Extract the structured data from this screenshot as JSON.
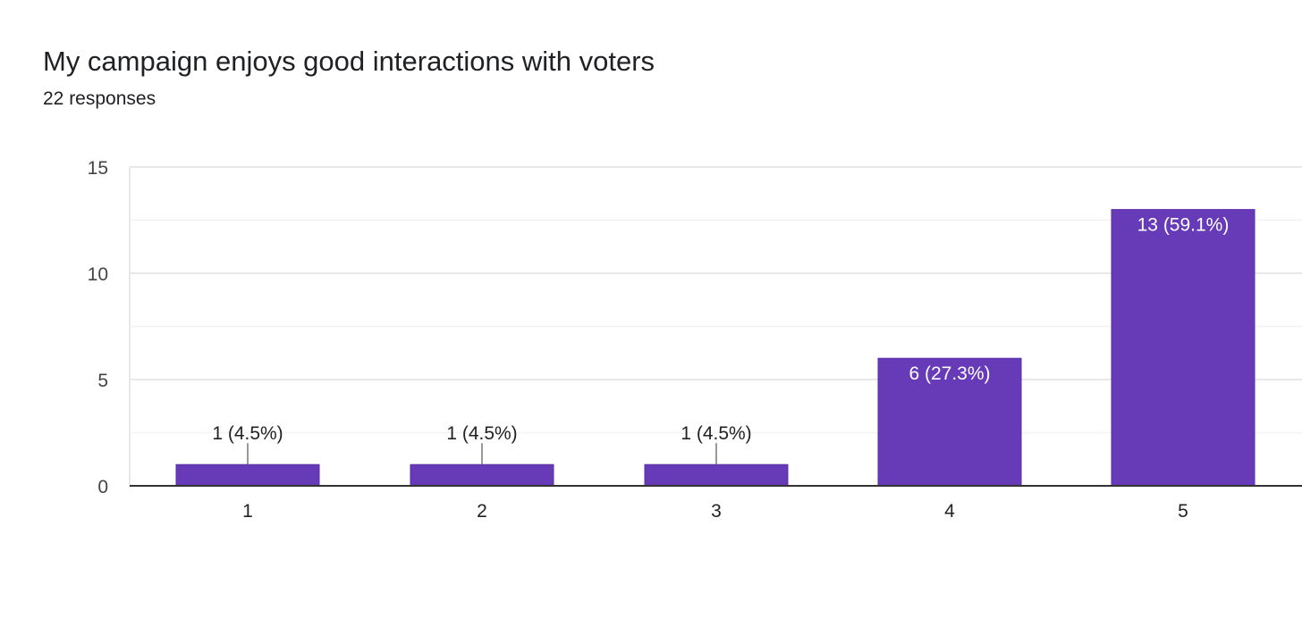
{
  "header": {
    "title": "My campaign enjoys good interactions with voters",
    "subtitle": "22 responses"
  },
  "colors": {
    "bar": "#673ab7",
    "gridline": "#e8e8e8",
    "axis": "#333333"
  },
  "chart_data": {
    "type": "bar",
    "categories": [
      "1",
      "2",
      "3",
      "4",
      "5"
    ],
    "values": [
      1,
      1,
      1,
      6,
      13
    ],
    "data_labels": [
      "1 (4.5%)",
      "1 (4.5%)",
      "1 (4.5%)",
      "6 (27.3%)",
      "13 (59.1%)"
    ],
    "ylim": [
      0,
      15
    ],
    "yticks": [
      0,
      5,
      10,
      15
    ],
    "grid": true,
    "legend": "none",
    "title": "My campaign enjoys good interactions with voters",
    "xlabel": "",
    "ylabel": ""
  }
}
